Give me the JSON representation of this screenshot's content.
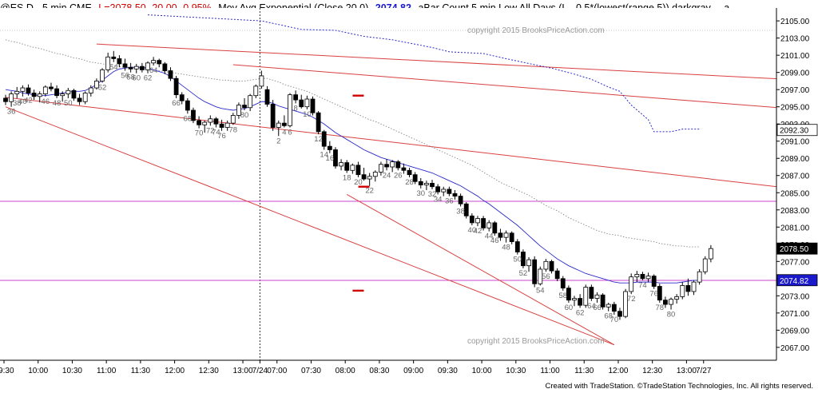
{
  "header": {
    "symbol": "@ES.D - 5 min  CME",
    "last": "L=2078.50  -20.00  -0.95%",
    "indicator": "Mov Avg Exponential (Close,20,0)",
    "indicator_value": "2074.82",
    "abar": "aBar Count 5 min Low All Days (L - 0.5*(lowest(range,5)),darkgray,...  a ..."
  },
  "copyright_top": "copyright 2015 BrooksPriceAction.com",
  "copyright_bottom": "copyright 2015 BrooksPriceAction.com",
  "footer": "Created with TradeStation. ©TradeStation Technologies, Inc. All rights reserved.",
  "colors": {
    "channel": "#d94040",
    "ema": "#2a2acc",
    "magenta": "#cc44cc",
    "dotted_blue": "#2a2acc",
    "price_box": "#1a1acc"
  },
  "chart_data": {
    "type": "candlestick",
    "title": "@ES.D - 5 min CME",
    "ylim": [
      2065.5,
      2106.5
    ],
    "y_ticks": [
      "2105.00",
      "2103.00",
      "2101.00",
      "2099.00",
      "2097.00",
      "2095.00",
      "2093.00",
      "2091.00",
      "2089.00",
      "2087.00",
      "2085.00",
      "2083.00",
      "2081.00",
      "2079.00",
      "2077.00",
      "2075.00",
      "2073.00",
      "2071.00",
      "2069.00",
      "2067.00"
    ],
    "x_ticks": [
      "09:30",
      "10:00",
      "10:30",
      "11:00",
      "11:30",
      "12:00",
      "12:30",
      "13:00",
      "7/24",
      "07:00",
      "07:30",
      "08:00",
      "08:30",
      "09:00",
      "09:30",
      "10:00",
      "10:30",
      "11:00",
      "11:30",
      "12:00",
      "12:30",
      "13:00",
      "7/27"
    ],
    "x_tick_index": [
      0,
      6,
      12,
      18,
      24,
      30,
      36,
      42,
      45,
      48,
      54,
      60,
      66,
      72,
      78,
      84,
      90,
      96,
      102,
      108,
      114,
      120,
      123
    ],
    "session_break_index": 45,
    "bars_ohlc": [
      [
        2096.0,
        2096.4,
        2095.2,
        2095.6
      ],
      [
        2095.6,
        2096.8,
        2095.0,
        2096.5
      ],
      [
        2096.5,
        2097.3,
        2096.0,
        2096.8
      ],
      [
        2096.8,
        2097.5,
        2096.2,
        2097.2
      ],
      [
        2097.2,
        2097.6,
        2096.3,
        2096.6
      ],
      [
        2096.6,
        2097.0,
        2095.8,
        2096.2
      ],
      [
        2096.2,
        2096.8,
        2095.5,
        2096.5
      ],
      [
        2096.5,
        2097.5,
        2096.2,
        2097.3
      ],
      [
        2097.3,
        2097.8,
        2096.8,
        2097.1
      ],
      [
        2097.1,
        2097.5,
        2096.0,
        2096.3
      ],
      [
        2096.3,
        2096.8,
        2095.6,
        2096.5
      ],
      [
        2096.5,
        2097.2,
        2096.0,
        2096.9
      ],
      [
        2096.9,
        2097.1,
        2095.7,
        2096.0
      ],
      [
        2096.0,
        2096.5,
        2095.2,
        2095.6
      ],
      [
        2095.6,
        2096.8,
        2095.3,
        2096.6
      ],
      [
        2096.6,
        2097.5,
        2096.2,
        2097.2
      ],
      [
        2097.2,
        2098.3,
        2097.0,
        2098.0
      ],
      [
        2098.0,
        2099.5,
        2097.8,
        2099.3
      ],
      [
        2099.3,
        2101.3,
        2099.0,
        2100.8
      ],
      [
        2100.8,
        2101.5,
        2100.2,
        2100.6
      ],
      [
        2100.6,
        2101.0,
        2099.6,
        2100.0
      ],
      [
        2100.0,
        2100.6,
        2099.2,
        2099.6
      ],
      [
        2099.6,
        2100.1,
        2099.0,
        2099.4
      ],
      [
        2099.4,
        2100.0,
        2098.9,
        2099.7
      ],
      [
        2099.7,
        2100.1,
        2099.0,
        2099.3
      ],
      [
        2099.3,
        2100.3,
        2098.9,
        2100.1
      ],
      [
        2100.1,
        2100.8,
        2099.8,
        2100.4
      ],
      [
        2100.4,
        2100.6,
        2099.6,
        2100.0
      ],
      [
        2100.0,
        2100.2,
        2098.8,
        2099.2
      ],
      [
        2099.2,
        2099.6,
        2098.0,
        2098.3
      ],
      [
        2098.3,
        2098.6,
        2096.0,
        2096.4
      ],
      [
        2096.4,
        2096.7,
        2095.3,
        2095.7
      ],
      [
        2095.7,
        2096.0,
        2094.2,
        2094.6
      ],
      [
        2094.6,
        2094.9,
        2093.1,
        2093.4
      ],
      [
        2093.4,
        2093.9,
        2092.5,
        2092.9
      ],
      [
        2092.9,
        2093.4,
        2092.0,
        2093.2
      ],
      [
        2093.2,
        2094.0,
        2092.8,
        2093.6
      ],
      [
        2093.6,
        2093.8,
        2092.6,
        2093.0
      ],
      [
        2093.0,
        2093.5,
        2092.2,
        2092.6
      ],
      [
        2092.6,
        2093.4,
        2092.2,
        2093.1
      ],
      [
        2093.1,
        2094.3,
        2092.9,
        2094.0
      ],
      [
        2094.0,
        2095.5,
        2093.6,
        2095.2
      ],
      [
        2095.2,
        2096.0,
        2094.6,
        2094.9
      ],
      [
        2094.9,
        2096.5,
        2094.5,
        2096.3
      ],
      [
        2096.3,
        2097.6,
        2096.0,
        2097.4
      ],
      [
        2097.4,
        2099.2,
        2097.1,
        2098.6
      ],
      [
        2097.0,
        2097.4,
        2095.0,
        2095.3
      ],
      [
        2095.3,
        2095.8,
        2092.2,
        2092.6
      ],
      [
        2092.6,
        2093.4,
        2091.6,
        2093.1
      ],
      [
        2093.1,
        2094.0,
        2092.6,
        2092.8
      ],
      [
        2092.8,
        2096.6,
        2092.6,
        2096.4
      ],
      [
        2096.4,
        2096.9,
        2095.4,
        2095.8
      ],
      [
        2095.8,
        2096.4,
        2094.8,
        2095.0
      ],
      [
        2095.0,
        2096.3,
        2094.7,
        2095.9
      ],
      [
        2095.9,
        2096.2,
        2094.0,
        2094.3
      ],
      [
        2094.3,
        2094.5,
        2091.8,
        2092.1
      ],
      [
        2092.1,
        2092.3,
        2090.0,
        2090.4
      ],
      [
        2090.4,
        2091.0,
        2089.6,
        2090.0
      ],
      [
        2090.0,
        2090.3,
        2087.8,
        2088.1
      ],
      [
        2088.1,
        2088.9,
        2087.6,
        2088.5
      ],
      [
        2088.5,
        2088.8,
        2087.3,
        2087.6
      ],
      [
        2087.6,
        2088.4,
        2087.2,
        2088.2
      ],
      [
        2088.2,
        2088.6,
        2086.8,
        2087.1
      ],
      [
        2087.1,
        2087.9,
        2086.4,
        2086.6
      ],
      [
        2086.6,
        2087.3,
        2085.8,
        2086.9
      ],
      [
        2086.9,
        2087.6,
        2086.3,
        2087.4
      ],
      [
        2087.4,
        2088.6,
        2087.0,
        2088.3
      ],
      [
        2088.3,
        2088.9,
        2087.6,
        2088.0
      ],
      [
        2088.0,
        2088.8,
        2087.4,
        2088.6
      ],
      [
        2088.6,
        2088.8,
        2087.6,
        2087.9
      ],
      [
        2087.9,
        2088.4,
        2087.2,
        2087.6
      ],
      [
        2087.6,
        2087.9,
        2086.8,
        2087.1
      ],
      [
        2087.1,
        2087.4,
        2086.0,
        2086.3
      ],
      [
        2086.3,
        2086.7,
        2085.5,
        2085.9
      ],
      [
        2085.9,
        2086.4,
        2085.3,
        2086.1
      ],
      [
        2086.1,
        2086.5,
        2085.4,
        2085.7
      ],
      [
        2085.7,
        2086.0,
        2084.8,
        2085.1
      ],
      [
        2085.1,
        2085.7,
        2084.6,
        2085.4
      ],
      [
        2085.4,
        2085.7,
        2084.6,
        2084.9
      ],
      [
        2084.9,
        2085.3,
        2084.2,
        2084.6
      ],
      [
        2084.6,
        2084.9,
        2083.4,
        2083.7
      ],
      [
        2083.7,
        2083.9,
        2082.0,
        2082.3
      ],
      [
        2082.3,
        2082.6,
        2081.2,
        2081.5
      ],
      [
        2081.5,
        2082.3,
        2081.1,
        2082.0
      ],
      [
        2082.0,
        2082.3,
        2080.6,
        2080.9
      ],
      [
        2080.9,
        2081.8,
        2080.5,
        2081.5
      ],
      [
        2081.5,
        2081.7,
        2080.0,
        2080.3
      ],
      [
        2080.3,
        2080.8,
        2079.4,
        2079.8
      ],
      [
        2079.8,
        2080.6,
        2079.2,
        2080.3
      ],
      [
        2080.3,
        2080.5,
        2079.0,
        2079.3
      ],
      [
        2079.3,
        2079.6,
        2077.8,
        2078.1
      ],
      [
        2078.1,
        2078.4,
        2076.2,
        2076.5
      ],
      [
        2076.5,
        2077.5,
        2075.8,
        2077.2
      ],
      [
        2077.2,
        2077.6,
        2074.0,
        2074.4
      ],
      [
        2074.4,
        2076.4,
        2074.2,
        2076.1
      ],
      [
        2076.1,
        2077.3,
        2075.8,
        2077.0
      ],
      [
        2077.0,
        2077.2,
        2075.6,
        2075.9
      ],
      [
        2075.9,
        2076.2,
        2074.7,
        2075.0
      ],
      [
        2075.0,
        2075.3,
        2073.6,
        2073.9
      ],
      [
        2073.9,
        2074.2,
        2072.2,
        2072.5
      ],
      [
        2072.5,
        2073.0,
        2071.8,
        2072.7
      ],
      [
        2072.7,
        2073.2,
        2071.6,
        2071.9
      ],
      [
        2071.9,
        2074.3,
        2071.6,
        2074.0
      ],
      [
        2074.0,
        2074.3,
        2072.4,
        2072.7
      ],
      [
        2072.7,
        2073.4,
        2072.2,
        2073.1
      ],
      [
        2073.1,
        2073.3,
        2071.4,
        2071.7
      ],
      [
        2071.7,
        2072.2,
        2071.2,
        2072.0
      ],
      [
        2072.0,
        2072.3,
        2070.8,
        2071.2
      ],
      [
        2071.2,
        2071.6,
        2070.2,
        2070.6
      ],
      [
        2070.6,
        2073.8,
        2070.4,
        2073.5
      ],
      [
        2073.5,
        2075.6,
        2073.2,
        2075.2
      ],
      [
        2075.2,
        2075.9,
        2074.6,
        2075.5
      ],
      [
        2075.5,
        2075.8,
        2074.8,
        2075.0
      ],
      [
        2075.0,
        2075.7,
        2074.6,
        2075.3
      ],
      [
        2075.3,
        2075.5,
        2073.8,
        2074.1
      ],
      [
        2074.1,
        2074.4,
        2072.2,
        2072.5
      ],
      [
        2072.5,
        2072.9,
        2071.6,
        2072.0
      ],
      [
        2072.0,
        2072.8,
        2071.4,
        2072.6
      ],
      [
        2072.6,
        2073.2,
        2072.1,
        2072.9
      ],
      [
        2072.9,
        2074.6,
        2072.6,
        2074.2
      ],
      [
        2074.2,
        2075.0,
        2073.0,
        2073.5
      ],
      [
        2073.5,
        2074.8,
        2073.1,
        2074.6
      ],
      [
        2074.6,
        2076.1,
        2074.3,
        2075.8
      ],
      [
        2075.8,
        2077.6,
        2075.5,
        2077.3
      ],
      [
        2077.3,
        2078.9,
        2076.9,
        2078.5
      ]
    ],
    "bar_labels": {
      "1": "36",
      "2": "38",
      "3": "40",
      "4": "42",
      "7": "46",
      "9": "48",
      "11": "50",
      "17": "52",
      "19": "54",
      "21": "56",
      "22": "58",
      "23": "60",
      "25": "62",
      "26": "64",
      "30": "66",
      "32": "68",
      "34": "70",
      "36": "72",
      "37": "74",
      "38": "76",
      "40": "78",
      "42": "80",
      "48": "2",
      "49": "4",
      "50": "6",
      "51": "8",
      "53": "10",
      "55": "12",
      "56": "14",
      "57": "16",
      "60": "18",
      "62": "20",
      "64": "22",
      "67": "24",
      "69": "26",
      "71": "28",
      "73": "30",
      "75": "32",
      "76": "34",
      "78": "36",
      "80": "38",
      "82": "40",
      "83": "42",
      "85": "44",
      "86": "46",
      "88": "48",
      "90": "50",
      "91": "52",
      "94": "54",
      "95": "56",
      "98": "58",
      "99": "60",
      "101": "62",
      "103": "64",
      "104": "66",
      "106": "68",
      "107": "70",
      "110": "72",
      "112": "74",
      "114": "76",
      "115": "78",
      "117": "80"
    },
    "ema20": [
      2097.0,
      2096.9,
      2096.8,
      2096.6,
      2096.5,
      2096.4,
      2096.3,
      2096.3,
      2096.4,
      2096.5,
      2096.6,
      2096.7,
      2096.8,
      2096.8,
      2096.9,
      2097.2,
      2097.6,
      2098.1,
      2098.6,
      2099.1,
      2099.4,
      2099.5,
      2099.6,
      2099.6,
      2099.6,
      2099.5,
      2099.3,
      2099.1,
      2098.9,
      2098.5,
      2098.0,
      2097.5,
      2097.0,
      2096.5,
      2096.0,
      2095.6,
      2095.3,
      2095.0,
      2094.8,
      2094.7,
      2094.6,
      2094.7,
      2094.8,
      2095.0,
      2095.3,
      2095.6,
      2095.6,
      2095.4,
      2095.1,
      2094.9,
      2094.7,
      2094.5,
      2094.3,
      2094.1,
      2093.8,
      2093.4,
      2093.0,
      2092.5,
      2092.0,
      2091.6,
      2091.2,
      2090.8,
      2090.4,
      2090.0,
      2089.7,
      2089.4,
      2089.1,
      2088.9,
      2088.7,
      2088.5,
      2088.3,
      2088.1,
      2087.9,
      2087.7,
      2087.5,
      2087.3,
      2087.0,
      2086.7,
      2086.4,
      2086.1,
      2085.8,
      2085.4,
      2085.0,
      2084.6,
      2084.1,
      2083.7,
      2083.2,
      2082.7,
      2082.2,
      2081.7,
      2081.2,
      2080.6,
      2080.0,
      2079.4,
      2078.8,
      2078.3,
      2077.8,
      2077.3,
      2076.9,
      2076.5,
      2076.2,
      2075.9,
      2075.6,
      2075.4,
      2075.2,
      2075.0,
      2074.8,
      2074.6,
      2074.5,
      2074.5,
      2074.5,
      2074.6,
      2074.6,
      2074.6,
      2074.6,
      2074.5,
      2074.5,
      2074.5,
      2074.5,
      2074.6,
      2074.7,
      2074.8,
      2074.8
    ],
    "ema_dotted_gray": [
      2102.8,
      2102.6,
      2102.5,
      2102.3,
      2102.1,
      2101.9,
      2101.8,
      2101.6,
      2101.4,
      2101.2,
      2101.1,
      2100.9,
      2100.7,
      2100.6,
      2100.4,
      2100.2,
      2100.1,
      2100.0,
      2099.9,
      2099.8,
      2099.7,
      2099.6,
      2099.6,
      2099.5,
      2099.5,
      2099.4,
      2099.3,
      2099.2,
      2099.1,
      2099.0,
      2098.9,
      2098.8,
      2098.7,
      2098.6,
      2098.5,
      2098.4,
      2098.3,
      2098.2,
      2098.1,
      2098.1,
      2098.0,
      2098.0,
      2098.0,
      2098.1,
      2098.2,
      2098.3,
      2098.3,
      2098.1,
      2097.9,
      2097.6,
      2097.4,
      2097.2,
      2097.0,
      2096.8,
      2096.5,
      2096.2,
      2095.9,
      2095.6,
      2095.3,
      2095.0,
      2094.7,
      2094.4,
      2094.1,
      2093.8,
      2093.5,
      2093.3,
      2093.0,
      2092.7,
      2092.4,
      2092.1,
      2091.8,
      2091.5,
      2091.2,
      2090.9,
      2090.6,
      2090.3,
      2090.0,
      2089.7,
      2089.4,
      2089.1,
      2088.8,
      2088.5,
      2088.2,
      2087.8,
      2087.4,
      2087.0,
      2086.6,
      2086.2,
      2085.9,
      2085.6,
      2085.3,
      2085.0,
      2084.7,
      2084.3,
      2083.9,
      2083.5,
      2083.2,
      2082.9,
      2082.5,
      2082.1,
      2081.8,
      2081.5,
      2081.2,
      2080.9,
      2080.6,
      2080.4,
      2080.2,
      2080.1,
      2080.0,
      2079.8,
      2079.7,
      2079.6,
      2079.5,
      2079.4,
      2079.3,
      2079.1,
      2079.0,
      2078.9,
      2078.8,
      2078.8,
      2078.7,
      2078.7,
      2078.7
    ],
    "dotted_blue_line": [
      [
        25,
        2105.7
      ],
      [
        45,
        2105.0
      ],
      [
        52,
        2104.0
      ],
      [
        58,
        2103.9
      ],
      [
        63,
        2103.2
      ],
      [
        68,
        2102.8
      ],
      [
        75,
        2101.9
      ],
      [
        78,
        2101.4
      ],
      [
        84,
        2101.2
      ],
      [
        88,
        2100.6
      ],
      [
        93,
        2099.9
      ],
      [
        96,
        2099.5
      ],
      [
        100,
        2098.8
      ],
      [
        103,
        2098.2
      ],
      [
        106,
        2097.3
      ],
      [
        108,
        2096.8
      ],
      [
        110,
        2095.2
      ],
      [
        113,
        2093.5
      ],
      [
        114,
        2092.1
      ],
      [
        117,
        2092.1
      ],
      [
        119,
        2092.4
      ],
      [
        122,
        2092.4
      ]
    ],
    "channel_lines": [
      [
        [
          0,
          2096.1
        ],
        [
          176,
          2082.6
        ]
      ],
      [
        [
          0,
          2095.0
        ],
        [
          107,
          2067.3
        ]
      ],
      [
        [
          16,
          2102.3
        ],
        [
          176,
          2096.9
        ]
      ],
      [
        [
          40,
          2099.9
        ],
        [
          176,
          2092.8
        ]
      ],
      [
        [
          60,
          2084.8
        ],
        [
          107,
          2067.3
        ]
      ]
    ],
    "horizontal_lines": [
      2084.0,
      2074.8
    ],
    "markers": [
      [
        62,
        2096.3
      ],
      [
        63,
        2085.7
      ],
      [
        62,
        2073.6
      ]
    ],
    "price_tags": [
      {
        "value": "2092.30",
        "y": 2092.3,
        "style": "outline"
      },
      {
        "value": "2078.50",
        "y": 2078.5,
        "style": "black"
      },
      {
        "value": "2074.82",
        "y": 2074.82,
        "style": "blue"
      }
    ]
  }
}
